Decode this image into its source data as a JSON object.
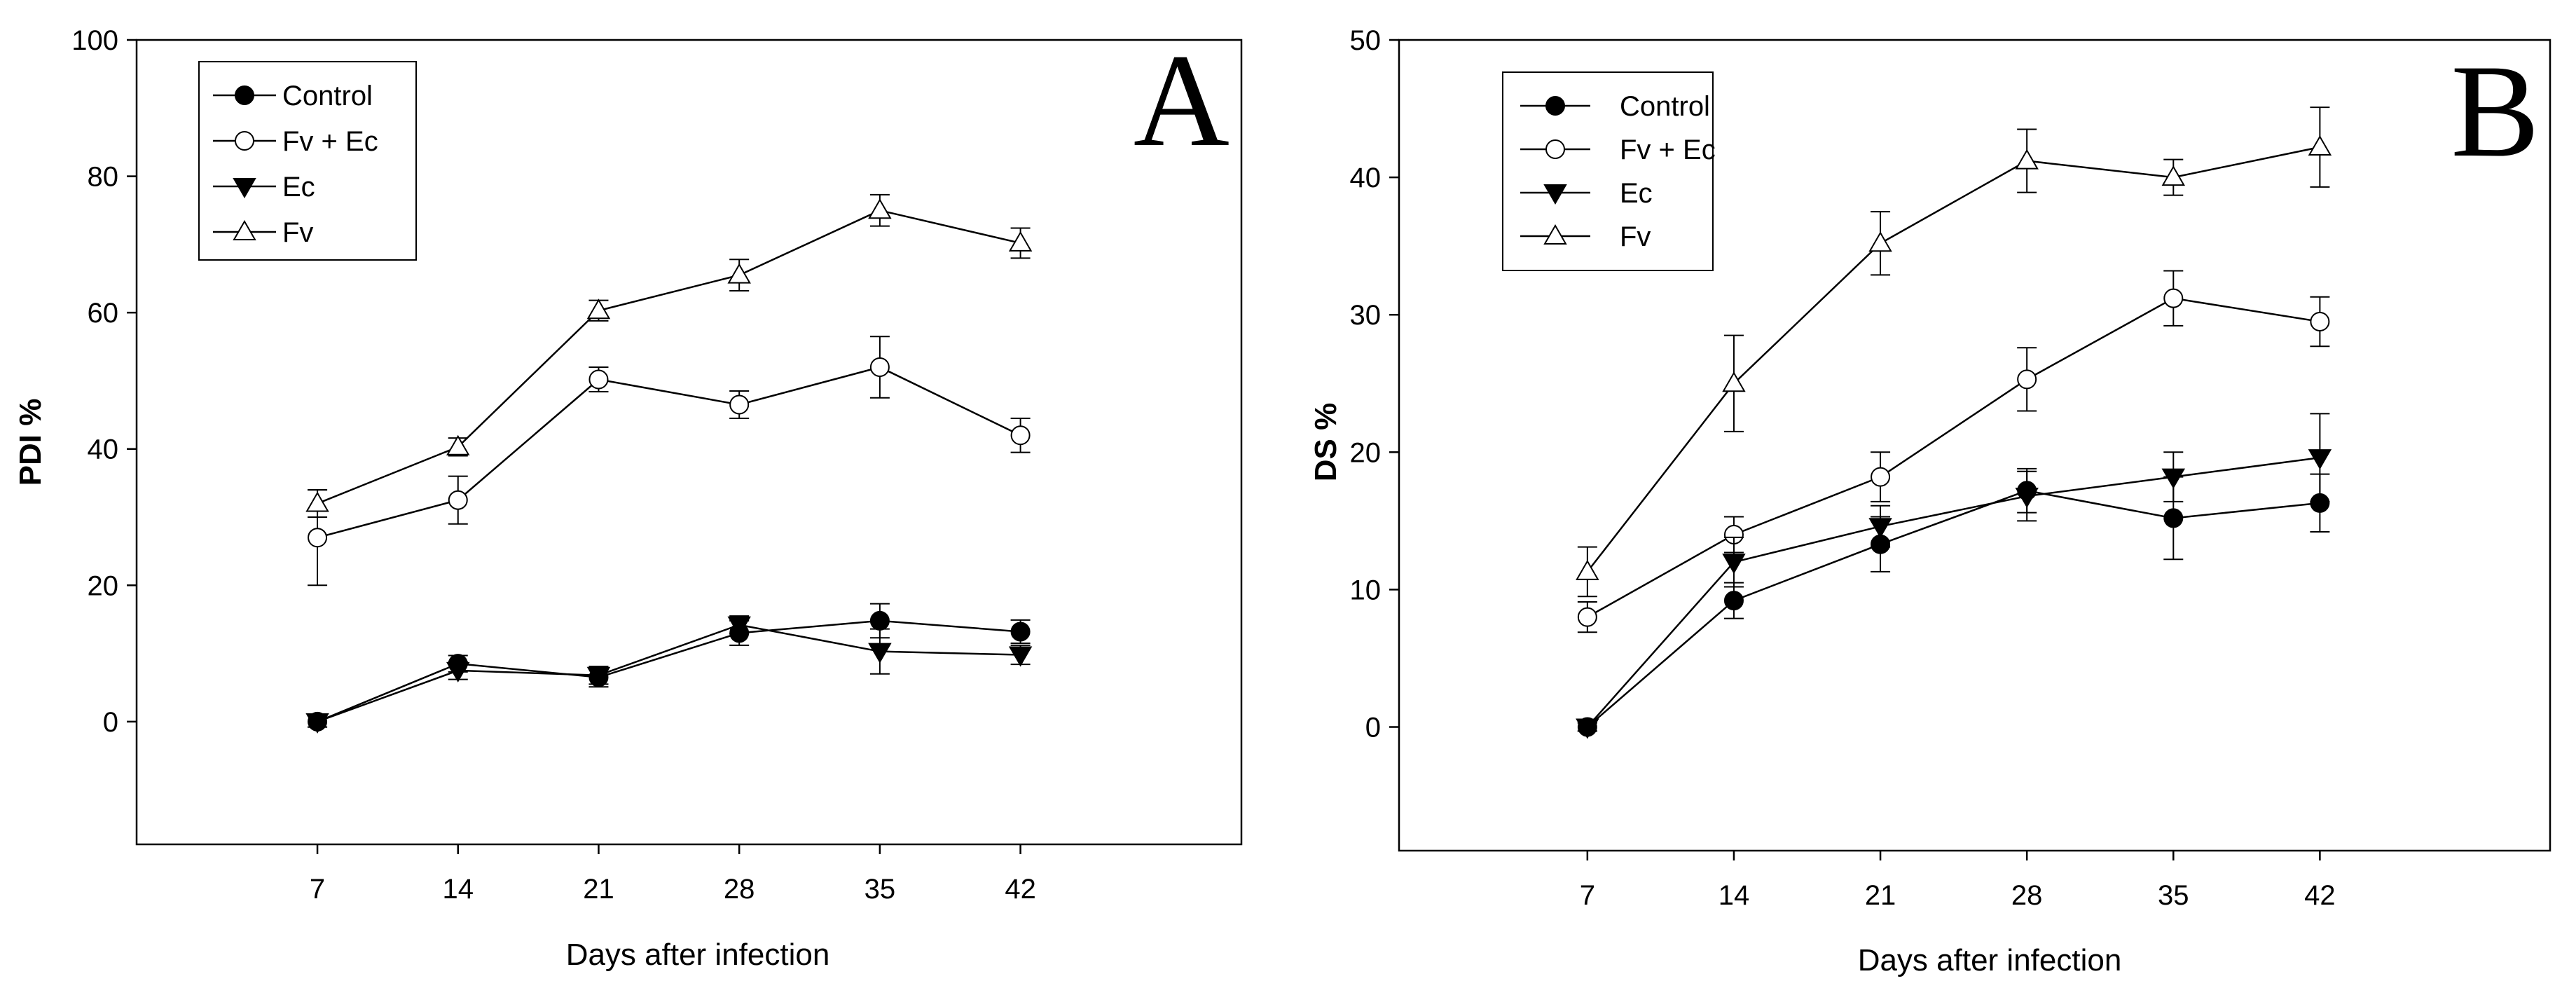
{
  "chart_data": [
    {
      "type": "line",
      "panel_label": "A",
      "title": "",
      "xlabel": "Days after infection",
      "ylabel": "PDI %",
      "x": [
        7,
        14,
        21,
        28,
        35,
        42
      ],
      "x_ticks": [
        "7",
        "14",
        "21",
        "28",
        "35",
        "42"
      ],
      "xlim": [
        -2,
        53
      ],
      "ylim": [
        -18,
        100
      ],
      "y_ticks": [
        "0",
        "20",
        "40",
        "60",
        "80",
        "100"
      ],
      "grid": false,
      "legend_position": "top-left",
      "series": [
        {
          "name": "Control",
          "marker": "filled-circle",
          "values": [
            0,
            8.5,
            6.5,
            13,
            14.8,
            13.2
          ],
          "errors": [
            0.8,
            1.2,
            1.4,
            1.8,
            2.5,
            1.7
          ]
        },
        {
          "name": "Fv + Ec",
          "marker": "open-circle",
          "values": [
            27,
            32.5,
            50.2,
            46.5,
            52,
            42
          ],
          "errors": [
            7,
            3.5,
            1.8,
            2,
            4.5,
            2.5
          ]
        },
        {
          "name": "Ec",
          "marker": "filled-triangle-down",
          "values": [
            0,
            7.5,
            6.8,
            14.2,
            10.3,
            9.8
          ],
          "errors": [
            0.8,
            1.3,
            1.3,
            1.3,
            3.3,
            1.4
          ]
        },
        {
          "name": "Fv",
          "marker": "open-triangle-up",
          "values": [
            32,
            40.3,
            60.3,
            65.5,
            75,
            70.2
          ],
          "errors": [
            2,
            1.3,
            1.5,
            2.3,
            2.3,
            2.2
          ]
        }
      ]
    },
    {
      "type": "line",
      "panel_label": "B",
      "title": "",
      "xlabel": "Days after infection",
      "ylabel": "DS %",
      "x": [
        7,
        14,
        21,
        28,
        35,
        42
      ],
      "x_ticks": [
        "7",
        "14",
        "21",
        "28",
        "35",
        "42"
      ],
      "xlim": [
        -2,
        53
      ],
      "ylim": [
        -9,
        50
      ],
      "y_ticks": [
        "0",
        "10",
        "20",
        "30",
        "40",
        "50"
      ],
      "grid": false,
      "legend_position": "top-left",
      "series": [
        {
          "name": "Control",
          "marker": "filled-circle",
          "values": [
            0,
            9.2,
            13.3,
            17.2,
            15.2,
            16.3
          ],
          "errors": [
            0.3,
            1.3,
            2,
            1.6,
            3,
            2.1
          ]
        },
        {
          "name": "Fv + Ec",
          "marker": "open-circle",
          "values": [
            8,
            14,
            18.2,
            25.3,
            31.2,
            29.5
          ],
          "errors": [
            1.1,
            1.3,
            1.8,
            2.3,
            2,
            1.8
          ]
        },
        {
          "name": "Ec",
          "marker": "filled-triangle-down",
          "values": [
            0,
            12,
            14.6,
            16.8,
            18.2,
            19.6
          ],
          "errors": [
            0.3,
            1.8,
            1.5,
            1.8,
            1.8,
            3.2
          ]
        },
        {
          "name": "Fv",
          "marker": "open-triangle-up",
          "values": [
            11.3,
            25,
            35.2,
            41.2,
            40,
            42.2
          ],
          "errors": [
            1.8,
            3.5,
            2.3,
            2.3,
            1.3,
            2.9
          ]
        }
      ]
    }
  ]
}
